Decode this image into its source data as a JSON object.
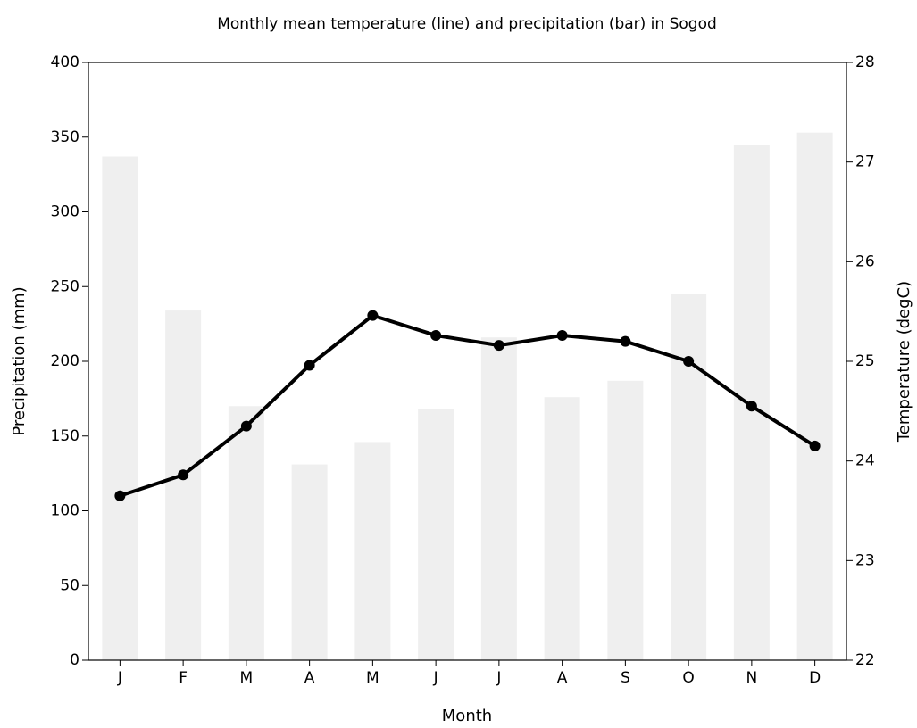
{
  "chart_data": {
    "type": "bar",
    "title": "Monthly mean temperature (line) and precipitation (bar) in Sogod",
    "xlabel": "Month",
    "ylabel": "Precipitation (mm)",
    "y2label": "Temperature (degC)",
    "categories": [
      "J",
      "F",
      "M",
      "A",
      "M",
      "J",
      "J",
      "A",
      "S",
      "O",
      "N",
      "D"
    ],
    "series": [
      {
        "name": "precipitation",
        "type": "bar",
        "color": "#efefef",
        "values": [
          337,
          234,
          170,
          131,
          146,
          168,
          216,
          176,
          187,
          245,
          345,
          353
        ]
      },
      {
        "name": "temperature",
        "type": "line",
        "axis": "y2",
        "color": "#000000",
        "values": [
          23.65,
          23.86,
          24.35,
          24.96,
          25.46,
          25.26,
          25.16,
          25.26,
          25.2,
          25.0,
          24.55,
          24.15
        ]
      }
    ],
    "ylim": [
      0,
      400
    ],
    "yticks": [
      0,
      50,
      100,
      150,
      200,
      250,
      300,
      350,
      400
    ],
    "y2lim": [
      22,
      28
    ],
    "y2ticks": [
      22,
      23,
      24,
      25,
      26,
      27,
      28
    ],
    "grid": false
  }
}
